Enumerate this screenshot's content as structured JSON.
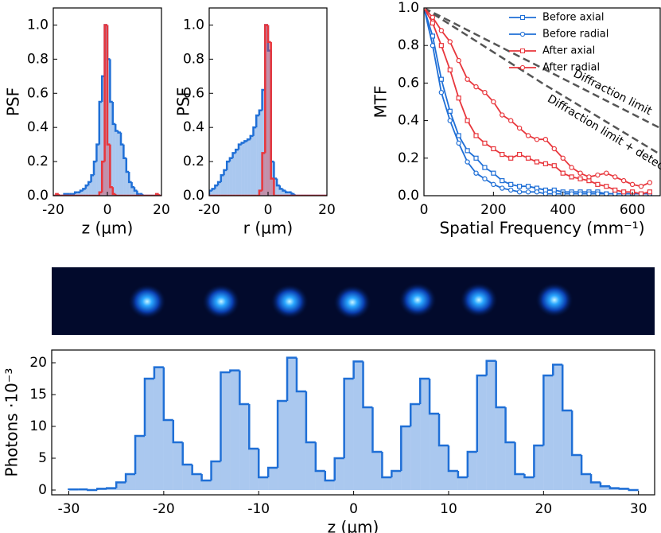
{
  "chart_data": [
    {
      "type": "histogram",
      "xlabel": "z (µm)",
      "ylabel": "PSF",
      "bins": [
        -20,
        -19,
        -18,
        -17,
        -16,
        -15,
        -14,
        -13,
        -12,
        -11,
        -10,
        -9,
        -8,
        -7,
        -6,
        -5,
        -4,
        -3,
        -2,
        -1,
        0,
        1,
        2,
        3,
        4,
        5,
        6,
        7,
        8,
        9,
        10,
        11,
        12,
        13,
        14,
        15,
        16,
        17,
        18,
        19,
        20
      ],
      "series": [
        {
          "color": "#1f6fd6",
          "values": [
            0,
            0,
            0,
            0,
            0.01,
            0.01,
            0.01,
            0.01,
            0.02,
            0.02,
            0.03,
            0.04,
            0.06,
            0.08,
            0.12,
            0.2,
            0.3,
            0.55,
            0.7,
            1.0,
            0.8,
            0.55,
            0.42,
            0.38,
            0.37,
            0.3,
            0.22,
            0.14,
            0.08,
            0.05,
            0.03,
            0.01,
            0.01,
            0,
            0,
            0,
            0,
            0,
            0,
            0
          ]
        },
        {
          "color": "#e8363c",
          "values": [
            0,
            0.01,
            0,
            0,
            0,
            0,
            0,
            0,
            0,
            0,
            0,
            0,
            0,
            0,
            0,
            0,
            0,
            0.02,
            0.2,
            1.0,
            0.3,
            0.05,
            0.01,
            0,
            0,
            0,
            0,
            0,
            0,
            0,
            0,
            0,
            0,
            0,
            0,
            0,
            0,
            0,
            0.01,
            0
          ]
        }
      ],
      "xlim": [
        -20,
        20
      ],
      "xticks": [
        -20,
        0,
        20
      ],
      "ylim": [
        0,
        1.1
      ],
      "yticks": [
        {
          "value": 0,
          "label": "0.0"
        },
        0.2,
        0.4,
        0.6,
        0.8,
        {
          "value": 1,
          "label": "1.0"
        }
      ]
    },
    {
      "type": "histogram",
      "xlabel": "r (µm)",
      "ylabel": "PSF",
      "bins": [
        -20,
        -19,
        -18,
        -17,
        -16,
        -15,
        -14,
        -13,
        -12,
        -11,
        -10,
        -9,
        -8,
        -7,
        -6,
        -5,
        -4,
        -3,
        -2,
        -1,
        0,
        1,
        2,
        3,
        4,
        5,
        6,
        7,
        8,
        9,
        10,
        11,
        12,
        13,
        14,
        15,
        16,
        17,
        18,
        19,
        20
      ],
      "series": [
        {
          "color": "#1f6fd6",
          "values": [
            0.03,
            0.04,
            0.06,
            0.08,
            0.12,
            0.15,
            0.2,
            0.22,
            0.25,
            0.27,
            0.3,
            0.31,
            0.32,
            0.33,
            0.35,
            0.4,
            0.47,
            0.5,
            0.62,
            1.0,
            0.85,
            0.2,
            0.1,
            0.06,
            0.04,
            0.03,
            0.02,
            0.02,
            0.01,
            0,
            0,
            0,
            0,
            0,
            0,
            0,
            0,
            0,
            0,
            0
          ]
        },
        {
          "color": "#e8363c",
          "values": [
            0,
            0,
            0,
            0,
            0,
            0,
            0,
            0,
            0,
            0,
            0,
            0,
            0,
            0,
            0,
            0,
            0,
            0.03,
            0.25,
            1.0,
            0.9,
            0.1,
            0,
            0,
            0,
            0,
            0,
            0,
            0,
            0,
            0,
            0,
            0,
            0,
            0,
            0,
            0,
            0,
            0,
            0
          ]
        }
      ],
      "xlim": [
        -20,
        20
      ],
      "xticks": [
        -20,
        0,
        20
      ],
      "ylim": [
        0,
        1.1
      ],
      "yticks": [
        {
          "value": 0,
          "label": "0.0"
        },
        0.2,
        0.4,
        0.6,
        0.8,
        {
          "value": 1,
          "label": "1.0"
        }
      ]
    },
    {
      "type": "line",
      "xlabel": "Spatial Frequency (mm⁻¹)",
      "ylabel": "MTF",
      "legend": "upper right",
      "x": [
        0,
        25,
        50,
        75,
        100,
        125,
        150,
        175,
        200,
        225,
        250,
        275,
        300,
        325,
        350,
        375,
        400,
        425,
        450,
        475,
        500,
        525,
        550,
        575,
        600,
        625,
        650
      ],
      "series": [
        {
          "name": "Before axial",
          "color": "#1f6fd6",
          "marker": "square",
          "values": [
            1.0,
            0.85,
            0.62,
            0.45,
            0.32,
            0.24,
            0.2,
            0.15,
            0.12,
            0.08,
            0.06,
            0.05,
            0.05,
            0.04,
            0.03,
            0.03,
            0.02,
            0.02,
            0.02,
            0.02,
            0.02,
            0.01,
            0.01,
            0.01,
            0.01,
            0.01,
            0.01
          ]
        },
        {
          "name": "Before radial",
          "color": "#1f6fd6",
          "marker": "circle",
          "values": [
            1.0,
            0.8,
            0.55,
            0.4,
            0.28,
            0.18,
            0.12,
            0.09,
            0.06,
            0.04,
            0.03,
            0.02,
            0.02,
            0.02,
            0.01,
            0.01,
            0.01,
            0.01,
            0.01,
            0.01,
            0.01,
            0.01,
            0.01,
            0.01,
            0.01,
            0.01,
            0.01
          ]
        },
        {
          "name": "After axial",
          "color": "#e8363c",
          "marker": "square",
          "values": [
            1.0,
            0.92,
            0.8,
            0.67,
            0.52,
            0.4,
            0.32,
            0.28,
            0.25,
            0.22,
            0.2,
            0.22,
            0.2,
            0.18,
            0.17,
            0.16,
            0.12,
            0.1,
            0.09,
            0.08,
            0.06,
            0.05,
            0.03,
            0.02,
            0.02,
            0.01,
            0.02
          ]
        },
        {
          "name": "After radial",
          "color": "#e8363c",
          "marker": "circle",
          "values": [
            1.0,
            0.95,
            0.88,
            0.82,
            0.72,
            0.62,
            0.58,
            0.55,
            0.5,
            0.43,
            0.4,
            0.36,
            0.32,
            0.3,
            0.3,
            0.25,
            0.2,
            0.15,
            0.12,
            0.1,
            0.11,
            0.12,
            0.1,
            0.08,
            0.06,
            0.05,
            0.07
          ]
        }
      ],
      "reference_curves": [
        {
          "label": "Diffraction limit",
          "color": "#555555",
          "x": [
            0,
            170,
            340,
            510,
            680
          ],
          "values": [
            1.0,
            0.84,
            0.68,
            0.52,
            0.36
          ]
        },
        {
          "label": "Diffraction limit + detector",
          "color": "#555555",
          "x": [
            0,
            170,
            340,
            510,
            680
          ],
          "values": [
            1.0,
            0.8,
            0.6,
            0.41,
            0.22
          ]
        }
      ],
      "xlim": [
        0,
        680
      ],
      "xticks": [
        0,
        200,
        400,
        600
      ],
      "ylim": [
        0,
        1.0
      ],
      "yticks": [
        {
          "value": 0,
          "label": "0.0"
        },
        0.2,
        0.4,
        0.6,
        0.8,
        {
          "value": 1,
          "label": "1.0"
        }
      ]
    },
    {
      "type": "histogram",
      "xlabel": "z (µm)",
      "ylabel": "Photons ·10⁻³",
      "bins": [
        -30,
        -29,
        -28,
        -27,
        -26,
        -25,
        -24,
        -23,
        -22,
        -21,
        -20,
        -19,
        -18,
        -17,
        -16,
        -15,
        -14,
        -13,
        -12,
        -11,
        -10,
        -9,
        -8,
        -7,
        -6,
        -5,
        -4,
        -3,
        -2,
        -1,
        0,
        1,
        2,
        3,
        4,
        5,
        6,
        7,
        8,
        9,
        10,
        11,
        12,
        13,
        14,
        15,
        16,
        17,
        18,
        19,
        20,
        21,
        22,
        23,
        24,
        25,
        26,
        27,
        28,
        29,
        30
      ],
      "series": [
        {
          "color": "#1f6fd6",
          "values": [
            0.1,
            0.1,
            0,
            0.2,
            0.3,
            1.2,
            2.5,
            8.5,
            17.5,
            19.3,
            11.0,
            7.5,
            4.0,
            2.5,
            1.5,
            4.5,
            18.5,
            18.8,
            13.5,
            6.5,
            2.0,
            3.5,
            14.0,
            20.8,
            15.5,
            7.5,
            3.0,
            1.5,
            5.0,
            17.5,
            20.2,
            13.0,
            6.0,
            2.0,
            3.0,
            10.0,
            13.5,
            17.5,
            12.0,
            7.0,
            3.0,
            2.0,
            6.0,
            18.0,
            20.3,
            13.0,
            7.5,
            2.5,
            2.0,
            7.0,
            18.0,
            19.7,
            12.5,
            5.5,
            2.5,
            1.2,
            0.6,
            0.3,
            0.2,
            0
          ]
        }
      ],
      "xlim": [
        -31.8,
        31.7
      ],
      "xticks": [
        -30,
        -20,
        -10,
        0,
        10,
        20,
        30
      ],
      "ylim": [
        -0.75,
        22
      ],
      "yticks": [
        0,
        5,
        10,
        15,
        20
      ]
    }
  ]
}
